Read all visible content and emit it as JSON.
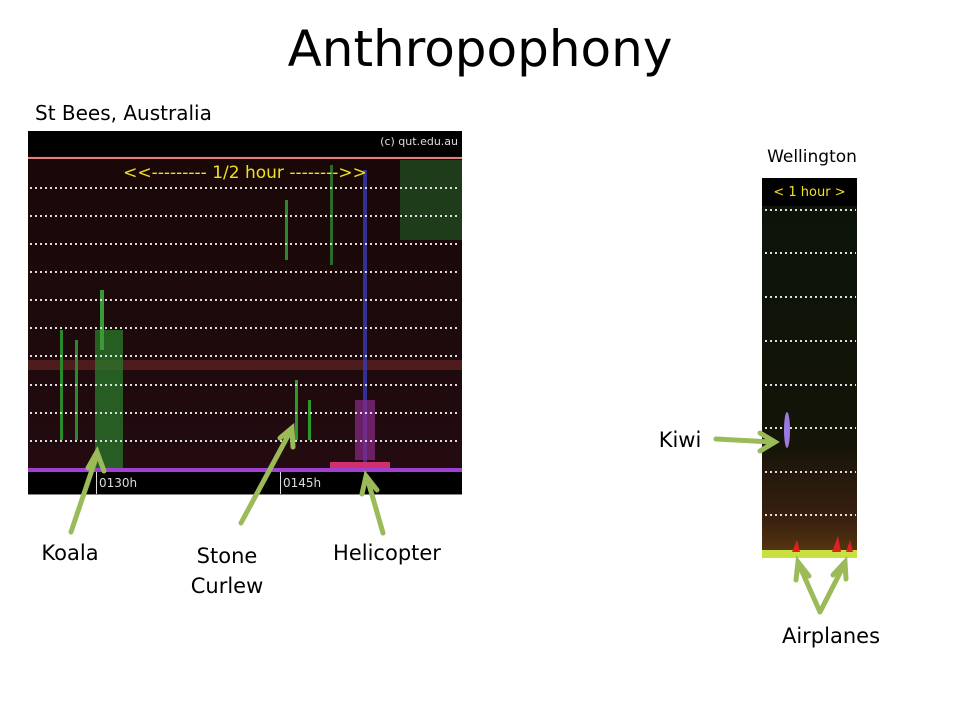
{
  "title": "Anthropophony",
  "left_panel": {
    "caption": "St Bees, Australia",
    "copyright": "(c) qut.edu.au",
    "scale_label": "<<--------- 1/2 hour -------->>",
    "time_labels": [
      "0130h",
      "0145h"
    ]
  },
  "right_panel": {
    "caption": "Wellington",
    "scale_label": "< 1 hour >"
  },
  "annotations": [
    "Koala",
    "Stone Curlew",
    "Helicopter",
    "Kiwi",
    "Airplanes"
  ]
}
